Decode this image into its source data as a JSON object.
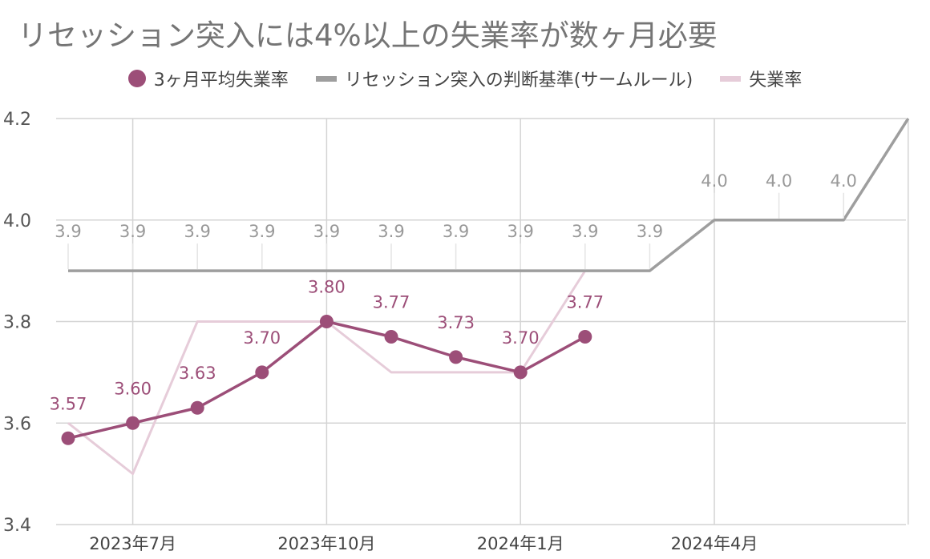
{
  "title": "リセッション突入には4%以上の失業率が数ヶ月必要",
  "chart_data": {
    "type": "line",
    "ylim": [
      3.4,
      4.2
    ],
    "y_ticks": [
      "3.4",
      "3.6",
      "3.8",
      "4.0",
      "4.2"
    ],
    "x_tick_labels": [
      {
        "index": 1,
        "label": "2023年7月"
      },
      {
        "index": 4,
        "label": "2023年10月"
      },
      {
        "index": 7,
        "label": "2024年1月"
      },
      {
        "index": 10,
        "label": "2024年4月"
      }
    ],
    "legend_position": "top",
    "grid": true,
    "series": [
      {
        "name": "3ヶ月平均失業率",
        "color": "#9c4e78",
        "style": "line-markers",
        "values": [
          3.57,
          3.6,
          3.63,
          3.7,
          3.8,
          3.77,
          3.73,
          3.7,
          3.77
        ],
        "labels": [
          "3.57",
          "3.60",
          "3.63",
          "3.70",
          "3.80",
          "3.77",
          "3.73",
          "3.70",
          "3.77"
        ]
      },
      {
        "name": "リセッション突入の判断基準(サームルール)",
        "color": "#9e9e9e",
        "style": "line",
        "values": [
          3.9,
          3.9,
          3.9,
          3.9,
          3.9,
          3.9,
          3.9,
          3.9,
          3.9,
          3.9,
          4.0,
          4.0,
          4.0,
          4.2
        ],
        "labels": [
          "3.9",
          "3.9",
          "3.9",
          "3.9",
          "3.9",
          "3.9",
          "3.9",
          "3.9",
          "3.9",
          "3.9",
          "4.0",
          "4.0",
          "4.0",
          ""
        ]
      },
      {
        "name": "失業率",
        "color": "#e6ccd9",
        "style": "line",
        "values": [
          3.6,
          3.5,
          3.8,
          3.8,
          3.8,
          3.7,
          3.7,
          3.7,
          3.9
        ]
      }
    ]
  }
}
